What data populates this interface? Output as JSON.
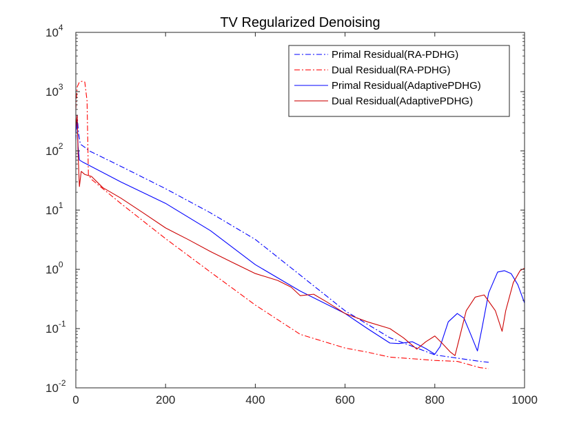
{
  "chart_data": {
    "type": "line",
    "title": "TV Regularized Denoising",
    "xlabel": "",
    "ylabel": "",
    "xlim": [
      0,
      1000
    ],
    "ylim": [
      0.01,
      10000
    ],
    "yscale": "log",
    "x_ticks": [
      0,
      200,
      400,
      600,
      800,
      1000
    ],
    "x_tick_labels": [
      "0",
      "200",
      "400",
      "600",
      "800",
      "1000"
    ],
    "y_ticks": [
      0.01,
      0.1,
      1,
      10,
      100,
      1000,
      10000
    ],
    "y_tick_labels": [
      {
        "base": "10",
        "exp": "-2"
      },
      {
        "base": "10",
        "exp": "-1"
      },
      {
        "base": "10",
        "exp": "0"
      },
      {
        "base": "10",
        "exp": "1"
      },
      {
        "base": "10",
        "exp": "2"
      },
      {
        "base": "10",
        "exp": "3"
      },
      {
        "base": "10",
        "exp": "4"
      }
    ],
    "grid": false,
    "legend_position": "top-right",
    "series": [
      {
        "name": "Primal Residual(RA-PDHG)",
        "color": "#0000ff",
        "style": "dashdot",
        "points": [
          [
            0,
            150
          ],
          [
            3,
            400
          ],
          [
            6,
            200
          ],
          [
            10,
            130
          ],
          [
            20,
            115
          ],
          [
            30,
            100
          ],
          [
            100,
            55
          ],
          [
            200,
            23
          ],
          [
            300,
            9
          ],
          [
            400,
            3.2
          ],
          [
            500,
            0.8
          ],
          [
            600,
            0.2
          ],
          [
            700,
            0.07
          ],
          [
            800,
            0.036
          ],
          [
            900,
            0.028
          ],
          [
            920,
            0.027
          ]
        ]
      },
      {
        "name": "Dual Residual(RA-PDHG)",
        "color": "#ff0000",
        "style": "dashdot",
        "points": [
          [
            0,
            500
          ],
          [
            3,
            1200
          ],
          [
            8,
            1450
          ],
          [
            15,
            1500
          ],
          [
            20,
            1450
          ],
          [
            25,
            700
          ],
          [
            28,
            40
          ],
          [
            35,
            33
          ],
          [
            100,
            13
          ],
          [
            200,
            3.3
          ],
          [
            300,
            0.9
          ],
          [
            400,
            0.25
          ],
          [
            500,
            0.08
          ],
          [
            600,
            0.047
          ],
          [
            650,
            0.04
          ],
          [
            700,
            0.033
          ],
          [
            750,
            0.031
          ],
          [
            800,
            0.029
          ],
          [
            850,
            0.028
          ],
          [
            900,
            0.022
          ],
          [
            920,
            0.021
          ]
        ]
      },
      {
        "name": "Primal Residual(AdaptivePDHG)",
        "color": "#0000ff",
        "style": "solid",
        "points": [
          [
            0,
            200
          ],
          [
            3,
            350
          ],
          [
            5,
            120
          ],
          [
            8,
            70
          ],
          [
            15,
            65
          ],
          [
            100,
            30
          ],
          [
            200,
            13
          ],
          [
            300,
            4.5
          ],
          [
            400,
            1.2
          ],
          [
            500,
            0.43
          ],
          [
            600,
            0.18
          ],
          [
            650,
            0.1
          ],
          [
            700,
            0.057
          ],
          [
            720,
            0.056
          ],
          [
            750,
            0.06
          ],
          [
            780,
            0.046
          ],
          [
            800,
            0.037
          ],
          [
            812,
            0.05
          ],
          [
            830,
            0.13
          ],
          [
            850,
            0.18
          ],
          [
            865,
            0.15
          ],
          [
            880,
            0.08
          ],
          [
            895,
            0.042
          ],
          [
            905,
            0.1
          ],
          [
            920,
            0.4
          ],
          [
            940,
            0.9
          ],
          [
            955,
            0.95
          ],
          [
            970,
            0.85
          ],
          [
            985,
            0.55
          ],
          [
            1000,
            0.27
          ]
        ]
      },
      {
        "name": "Dual Residual(AdaptivePDHG)",
        "color": "#cc0000",
        "style": "solid",
        "points": [
          [
            0,
            250
          ],
          [
            3,
            400
          ],
          [
            5,
            90
          ],
          [
            8,
            25
          ],
          [
            12,
            45
          ],
          [
            20,
            40
          ],
          [
            35,
            37
          ],
          [
            60,
            24
          ],
          [
            100,
            16
          ],
          [
            150,
            9
          ],
          [
            200,
            5
          ],
          [
            250,
            3.2
          ],
          [
            300,
            2
          ],
          [
            350,
            1.3
          ],
          [
            400,
            0.85
          ],
          [
            450,
            0.65
          ],
          [
            480,
            0.5
          ],
          [
            500,
            0.36
          ],
          [
            530,
            0.38
          ],
          [
            560,
            0.28
          ],
          [
            600,
            0.18
          ],
          [
            650,
            0.13
          ],
          [
            700,
            0.1
          ],
          [
            730,
            0.07
          ],
          [
            760,
            0.045
          ],
          [
            780,
            0.06
          ],
          [
            800,
            0.075
          ],
          [
            815,
            0.058
          ],
          [
            835,
            0.04
          ],
          [
            845,
            0.035
          ],
          [
            855,
            0.07
          ],
          [
            870,
            0.2
          ],
          [
            890,
            0.34
          ],
          [
            910,
            0.37
          ],
          [
            935,
            0.2
          ],
          [
            950,
            0.09
          ],
          [
            958,
            0.2
          ],
          [
            975,
            0.6
          ],
          [
            990,
            0.95
          ],
          [
            1000,
            1.05
          ]
        ]
      }
    ]
  }
}
